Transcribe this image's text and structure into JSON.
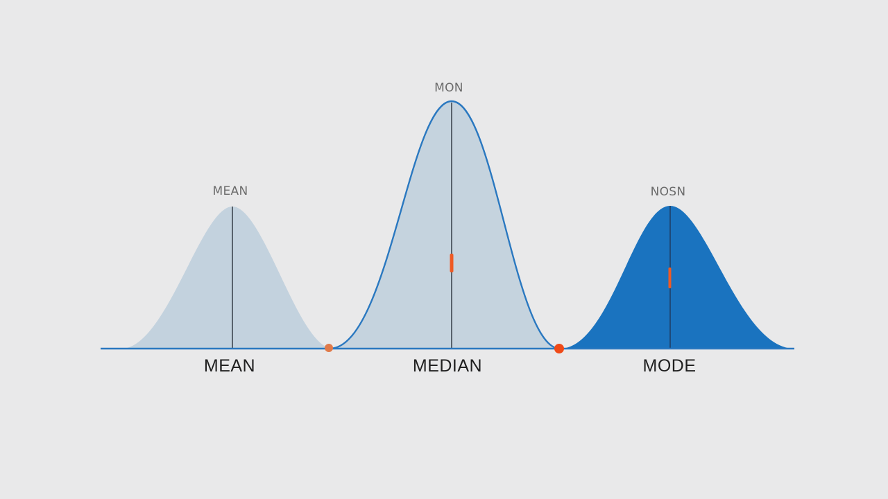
{
  "diagram": {
    "curves": [
      {
        "id": "mean",
        "bottom_label": "MEAN",
        "peak_label": "MEAN",
        "fill_color": "#c3d2de",
        "outline_color": "",
        "has_marker": false
      },
      {
        "id": "median",
        "bottom_label": "MEDIAN",
        "peak_label": "MON",
        "fill_color": "#c5d3de",
        "outline_color": "#2a78c0",
        "has_marker": true
      },
      {
        "id": "mode",
        "bottom_label": "MODE",
        "peak_label": "NOSN",
        "fill_color": "#1a73bf",
        "outline_color": "",
        "has_marker": true
      }
    ],
    "colors": {
      "background": "#e9e9ea",
      "baseline": "#2a78c0",
      "center_line": "#3d4650",
      "marker": "#ef5a24",
      "dot_left": "#e07a4a",
      "dot_right": "#ef4a18"
    },
    "dots": [
      {
        "id": "dot-between-mean-median"
      },
      {
        "id": "dot-between-median-mode"
      }
    ]
  }
}
